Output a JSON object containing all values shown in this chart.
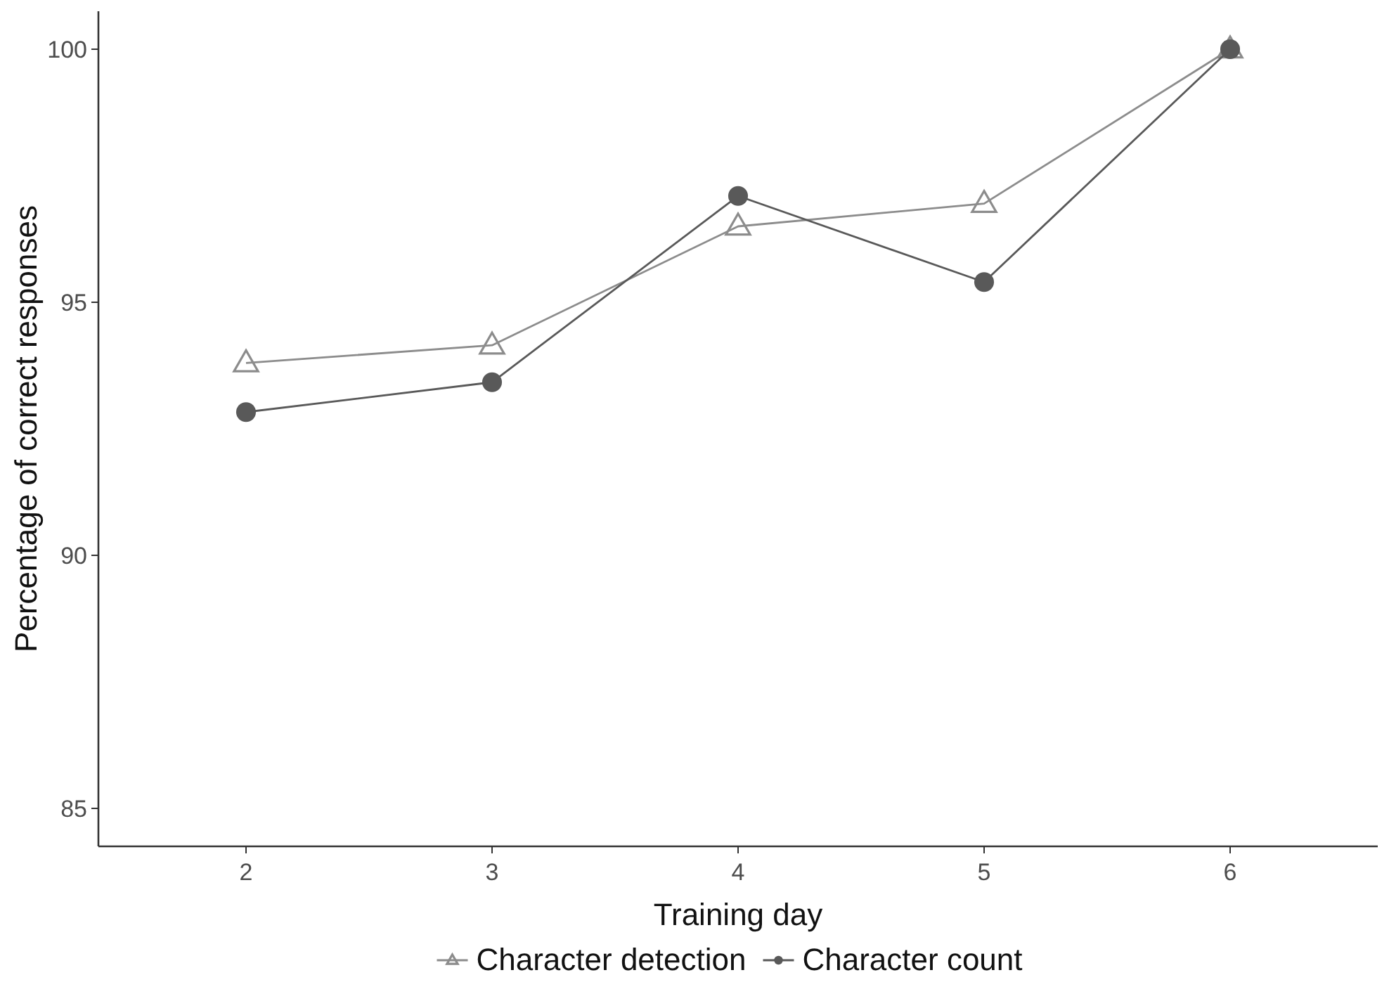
{
  "chart_data": {
    "type": "line",
    "xlabel": "Training day",
    "ylabel": "Percentage of correct responses",
    "x": [
      2,
      3,
      4,
      5,
      6
    ],
    "series": [
      {
        "name": "Character detection",
        "color": "#8c8c8c",
        "marker": "triangle",
        "values": [
          93.8,
          94.15,
          96.5,
          96.95,
          100
        ]
      },
      {
        "name": "Character count",
        "color": "#595959",
        "marker": "circle",
        "values": [
          92.83,
          93.42,
          97.1,
          95.4,
          100
        ]
      }
    ],
    "xlim": [
      1.4,
      6.6
    ],
    "xticks": [
      2,
      3,
      4,
      5,
      6
    ],
    "ylim": [
      84.25,
      100.75
    ],
    "yticks": [
      85,
      90,
      95,
      100
    ],
    "grid": false,
    "legend": "bottom"
  }
}
